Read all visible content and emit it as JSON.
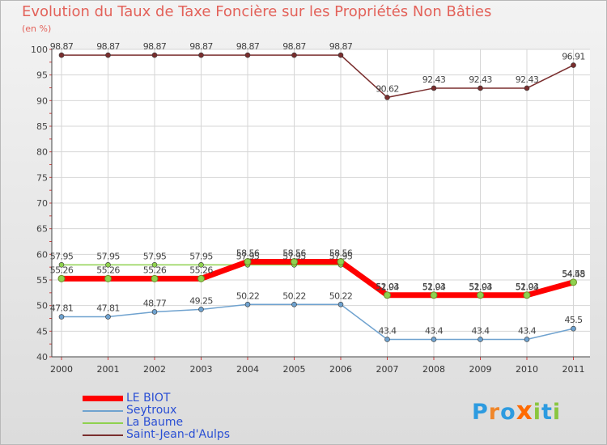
{
  "chart_data": {
    "type": "line",
    "title": "Evolution du Taux de Taxe Foncière sur les Propriétés Non Bâties",
    "ylabel": "(en %)",
    "xlabel": "",
    "categories": [
      "2000",
      "2001",
      "2002",
      "2003",
      "2004",
      "2005",
      "2006",
      "2007",
      "2008",
      "2009",
      "2010",
      "2011"
    ],
    "ylim": [
      40,
      100
    ],
    "yticks": [
      "40",
      "45",
      "50",
      "55",
      "60",
      "65",
      "70",
      "75",
      "80",
      "85",
      "90",
      "95",
      "100"
    ],
    "series": [
      {
        "name": "Saint-Jean-d'Aulps",
        "color": "#7a2e2e",
        "width": 1.5,
        "values": [
          98.87,
          98.87,
          98.87,
          98.87,
          98.87,
          98.87,
          98.87,
          90.62,
          92.43,
          92.43,
          92.43,
          96.91
        ],
        "labels": [
          "98.87",
          "98.87",
          "98.87",
          "98.87",
          "98.87",
          "98.87",
          "98.87",
          "90.62",
          "92.43",
          "92.43",
          "92.43",
          "96.91"
        ]
      },
      {
        "name": "La Baume",
        "color": "#8fd14f",
        "width": 1.5,
        "values": [
          57.95,
          57.95,
          57.95,
          57.95,
          57.95,
          57.95,
          57.95,
          51.94,
          51.94,
          51.94,
          51.94,
          54.48
        ],
        "labels": [
          "57.95",
          "57.95",
          "57.95",
          "57.95",
          "57.95",
          "57.95",
          "57.95",
          "51.94",
          "51.94",
          "51.94",
          "51.94",
          "54.48"
        ]
      },
      {
        "name": "Seytroux",
        "color": "#6fa2cf",
        "width": 1.5,
        "values": [
          47.81,
          47.81,
          48.77,
          49.25,
          50.22,
          50.22,
          50.22,
          43.4,
          43.4,
          43.4,
          43.4,
          45.5
        ],
        "labels": [
          "47.81",
          "47.81",
          "48.77",
          "49.25",
          "50.22",
          "50.22",
          "50.22",
          "43.4",
          "43.4",
          "43.4",
          "43.4",
          "45.5"
        ]
      },
      {
        "name": "LE BIOT",
        "color": "#ff0000",
        "width": 7,
        "values": [
          55.26,
          55.26,
          55.26,
          55.26,
          58.56,
          58.56,
          58.56,
          52.03,
          52.03,
          52.03,
          52.03,
          54.55
        ],
        "labels": [
          "55.26",
          "55.26",
          "55.26",
          "55.26",
          "58.56",
          "58.56",
          "58.56",
          "52.03",
          "52.03",
          "52.03",
          "52.03",
          "54.55"
        ]
      }
    ]
  },
  "legend": [
    "LE BIOT",
    "Seytroux",
    "La Baume",
    "Saint-Jean-d'Aulps"
  ],
  "logo": {
    "text": "Proxiti",
    "letters": [
      "P",
      "r",
      "o",
      "x",
      "i",
      "t",
      "i"
    ],
    "colors": [
      "#2d9be0",
      "#f0862a",
      "#2d9be0",
      "#ff6a00",
      "#8ac63f",
      "#2d9be0",
      "#8ac63f"
    ]
  }
}
